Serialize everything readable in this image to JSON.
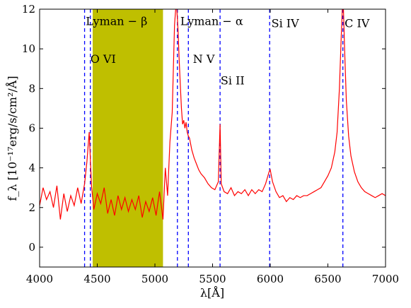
{
  "chart_data": {
    "type": "line",
    "xlabel": "λ[Å]",
    "ylabel": "f_λ [10⁻¹⁷erg/s/cm²/Å]",
    "xlim": [
      4000,
      7000
    ],
    "ylim": [
      -1,
      12
    ],
    "xticks": [
      4000,
      4500,
      5000,
      5500,
      6000,
      6500,
      7000
    ],
    "yticks": [
      0,
      2,
      4,
      6,
      8,
      10,
      12
    ],
    "xtick_labels": [
      "4000",
      "4500",
      "5000",
      "5500",
      "6000",
      "6500",
      "7000"
    ],
    "ytick_labels": [
      "0",
      "2",
      "4",
      "6",
      "8",
      "10",
      "12"
    ],
    "grid": false,
    "colors": {
      "spectrum": "#ff0000",
      "vlines": "#0000ff",
      "shaded_region": "#bfbf00"
    },
    "shaded_region": {
      "x0": 4460,
      "x1": 5070
    },
    "vertical_lines": [
      4390,
      4440,
      5195,
      5290,
      5565,
      5995,
      6630
    ],
    "annotations": [
      {
        "text": "Lyman − β",
        "x": 4400,
        "y": 11.2
      },
      {
        "text": "O VI",
        "x": 4440,
        "y": 9.3
      },
      {
        "text": "Lyman − α",
        "x": 5220,
        "y": 11.2
      },
      {
        "text": "N V",
        "x": 5330,
        "y": 9.3
      },
      {
        "text": "Si II",
        "x": 5570,
        "y": 8.2
      },
      {
        "text": "Si IV",
        "x": 6010,
        "y": 11.1
      },
      {
        "text": "C IV",
        "x": 6645,
        "y": 11.1
      }
    ],
    "series": [
      {
        "points": [
          [
            4000,
            2.1
          ],
          [
            4030,
            3.0
          ],
          [
            4060,
            2.4
          ],
          [
            4090,
            2.8
          ],
          [
            4120,
            2.0
          ],
          [
            4150,
            3.1
          ],
          [
            4180,
            1.4
          ],
          [
            4210,
            2.7
          ],
          [
            4240,
            1.8
          ],
          [
            4270,
            2.6
          ],
          [
            4300,
            2.1
          ],
          [
            4330,
            3.0
          ],
          [
            4360,
            2.2
          ],
          [
            4390,
            3.2
          ],
          [
            4410,
            4.3
          ],
          [
            4430,
            5.8
          ],
          [
            4450,
            3.1
          ],
          [
            4470,
            1.9
          ],
          [
            4500,
            2.7
          ],
          [
            4530,
            2.2
          ],
          [
            4560,
            3.0
          ],
          [
            4590,
            1.7
          ],
          [
            4620,
            2.4
          ],
          [
            4650,
            1.6
          ],
          [
            4680,
            2.6
          ],
          [
            4710,
            1.9
          ],
          [
            4740,
            2.5
          ],
          [
            4770,
            1.8
          ],
          [
            4800,
            2.4
          ],
          [
            4830,
            1.9
          ],
          [
            4860,
            2.6
          ],
          [
            4890,
            1.5
          ],
          [
            4920,
            2.3
          ],
          [
            4950,
            1.8
          ],
          [
            4980,
            2.5
          ],
          [
            5010,
            1.6
          ],
          [
            5040,
            2.8
          ],
          [
            5070,
            1.4
          ],
          [
            5090,
            4.0
          ],
          [
            5110,
            2.6
          ],
          [
            5130,
            5.3
          ],
          [
            5150,
            6.8
          ],
          [
            5170,
            11.2
          ],
          [
            5180,
            12.0
          ],
          [
            5190,
            12.0
          ],
          [
            5200,
            11.0
          ],
          [
            5210,
            9.5
          ],
          [
            5220,
            8.2
          ],
          [
            5230,
            7.0
          ],
          [
            5240,
            6.2
          ],
          [
            5250,
            6.4
          ],
          [
            5260,
            6.0
          ],
          [
            5270,
            6.3
          ],
          [
            5280,
            5.8
          ],
          [
            5290,
            5.6
          ],
          [
            5300,
            5.5
          ],
          [
            5320,
            4.9
          ],
          [
            5340,
            4.5
          ],
          [
            5360,
            4.2
          ],
          [
            5380,
            3.9
          ],
          [
            5400,
            3.7
          ],
          [
            5430,
            3.5
          ],
          [
            5460,
            3.2
          ],
          [
            5490,
            3.0
          ],
          [
            5520,
            2.9
          ],
          [
            5550,
            3.3
          ],
          [
            5565,
            6.2
          ],
          [
            5575,
            3.2
          ],
          [
            5600,
            2.8
          ],
          [
            5630,
            2.7
          ],
          [
            5660,
            3.0
          ],
          [
            5690,
            2.6
          ],
          [
            5720,
            2.8
          ],
          [
            5750,
            2.7
          ],
          [
            5780,
            2.9
          ],
          [
            5810,
            2.6
          ],
          [
            5840,
            2.9
          ],
          [
            5870,
            2.7
          ],
          [
            5900,
            2.9
          ],
          [
            5930,
            2.8
          ],
          [
            5960,
            3.2
          ],
          [
            5990,
            3.8
          ],
          [
            6000,
            3.9
          ],
          [
            6020,
            3.3
          ],
          [
            6050,
            2.8
          ],
          [
            6080,
            2.5
          ],
          [
            6110,
            2.6
          ],
          [
            6140,
            2.3
          ],
          [
            6170,
            2.5
          ],
          [
            6200,
            2.4
          ],
          [
            6230,
            2.6
          ],
          [
            6260,
            2.5
          ],
          [
            6290,
            2.6
          ],
          [
            6320,
            2.6
          ],
          [
            6350,
            2.7
          ],
          [
            6380,
            2.8
          ],
          [
            6410,
            2.9
          ],
          [
            6440,
            3.0
          ],
          [
            6470,
            3.3
          ],
          [
            6500,
            3.6
          ],
          [
            6530,
            4.0
          ],
          [
            6560,
            4.8
          ],
          [
            6580,
            5.8
          ],
          [
            6600,
            8.0
          ],
          [
            6615,
            10.5
          ],
          [
            6625,
            12.0
          ],
          [
            6635,
            12.0
          ],
          [
            6645,
            10.0
          ],
          [
            6660,
            7.4
          ],
          [
            6680,
            5.6
          ],
          [
            6700,
            4.6
          ],
          [
            6730,
            3.8
          ],
          [
            6760,
            3.3
          ],
          [
            6790,
            3.0
          ],
          [
            6820,
            2.8
          ],
          [
            6850,
            2.7
          ],
          [
            6880,
            2.6
          ],
          [
            6910,
            2.5
          ],
          [
            6940,
            2.6
          ],
          [
            6970,
            2.7
          ],
          [
            7000,
            2.6
          ]
        ]
      }
    ]
  }
}
